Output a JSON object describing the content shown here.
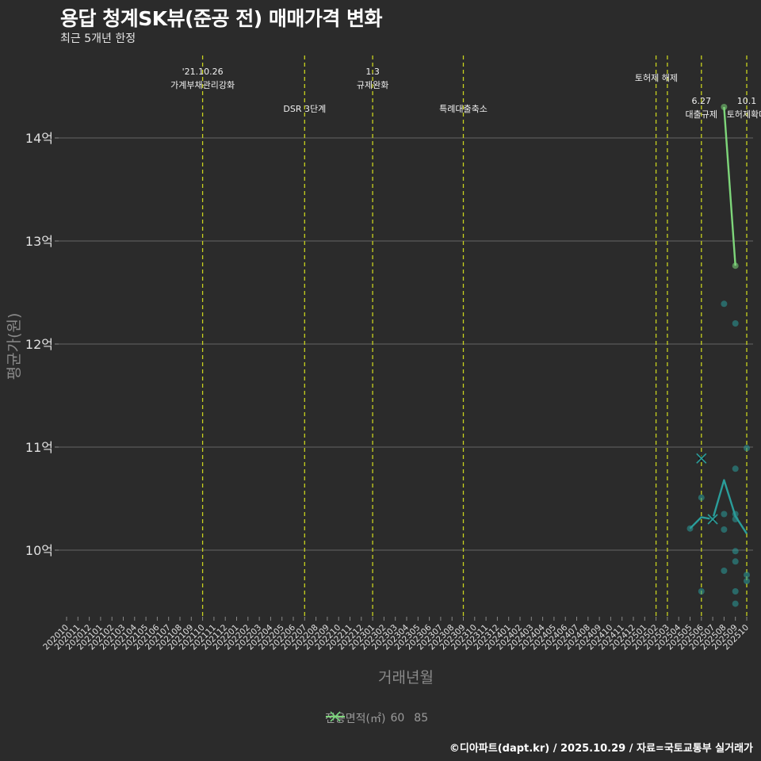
{
  "header": {
    "title": "용답 청계SK뷰(준공 전) 매매가격 변화",
    "subtitle": "최근 5개년 한정"
  },
  "caption": "©디아파트(dapt.kr) / 2025.10.29 / 자료=국토교통부 실거래가",
  "legend": {
    "title": "전용면적(㎡)",
    "items": [
      {
        "label": "60",
        "color": "#2a9d9a"
      },
      {
        "label": "85",
        "color": "#7ed67a"
      }
    ]
  },
  "colors": {
    "background": "#2b2b2b",
    "grid": "#5a5a5a",
    "event_line": "#c8d21e",
    "series_60": "#2a9d9a",
    "series_85": "#7ed67a"
  },
  "chart_data": {
    "type": "line",
    "title": "용답 청계SK뷰(준공 전) 매매가격 변화",
    "subtitle": "최근 5개년 한정",
    "xlabel": "거래년월",
    "ylabel": "평균가(원)",
    "ylim": [
      9.3,
      14.5
    ],
    "yticks": [
      {
        "value": 10,
        "label": "10억"
      },
      {
        "value": 11,
        "label": "11억"
      },
      {
        "value": 12,
        "label": "12억"
      },
      {
        "value": 13,
        "label": "13억"
      },
      {
        "value": 14,
        "label": "14억"
      }
    ],
    "categories": [
      "202010",
      "202011",
      "202012",
      "202101",
      "202102",
      "202103",
      "202104",
      "202105",
      "202106",
      "202107",
      "202108",
      "202109",
      "202110",
      "202111",
      "202112",
      "202201",
      "202202",
      "202203",
      "202204",
      "202205",
      "202206",
      "202207",
      "202208",
      "202209",
      "202210",
      "202211",
      "202212",
      "202301",
      "202302",
      "202303",
      "202304",
      "202305",
      "202306",
      "202307",
      "202308",
      "202309",
      "202310",
      "202311",
      "202312",
      "202401",
      "202402",
      "202403",
      "202404",
      "202405",
      "202406",
      "202407",
      "202408",
      "202409",
      "202410",
      "202411",
      "202412",
      "202501",
      "202502",
      "202503",
      "202504",
      "202505",
      "202506",
      "202507",
      "202508",
      "202509",
      "202510"
    ],
    "grid": true,
    "legend_position": "bottom",
    "series": [
      {
        "name": "60",
        "line": [
          {
            "x": "202505",
            "y": 10.21
          },
          {
            "x": "202506",
            "y": 10.32
          },
          {
            "x": "202507",
            "y": 10.3
          },
          {
            "x": "202508",
            "y": 10.68
          },
          {
            "x": "202509",
            "y": 10.33
          },
          {
            "x": "202510",
            "y": 10.16
          }
        ],
        "points": [
          {
            "x": "202505",
            "y": 10.21
          },
          {
            "x": "202506",
            "y": 10.51
          },
          {
            "x": "202506",
            "y": 9.6
          },
          {
            "x": "202508",
            "y": 12.39
          },
          {
            "x": "202508",
            "y": 10.35
          },
          {
            "x": "202508",
            "y": 10.2
          },
          {
            "x": "202508",
            "y": 9.8
          },
          {
            "x": "202509",
            "y": 12.2
          },
          {
            "x": "202509",
            "y": 10.79
          },
          {
            "x": "202509",
            "y": 10.35
          },
          {
            "x": "202509",
            "y": 10.3
          },
          {
            "x": "202509",
            "y": 9.99
          },
          {
            "x": "202509",
            "y": 9.89
          },
          {
            "x": "202509",
            "y": 9.6
          },
          {
            "x": "202509",
            "y": 9.48
          },
          {
            "x": "202510",
            "y": 10.99
          },
          {
            "x": "202510",
            "y": 9.76
          },
          {
            "x": "202510",
            "y": 9.7
          }
        ],
        "cancelled": [
          {
            "x": "202506",
            "y": 10.89
          },
          {
            "x": "202507",
            "y": 10.3
          }
        ]
      },
      {
        "name": "85",
        "line": [
          {
            "x": "202508",
            "y": 14.3
          },
          {
            "x": "202509",
            "y": 12.76
          }
        ],
        "points": [
          {
            "x": "202508",
            "y": 14.3
          },
          {
            "x": "202509",
            "y": 12.76
          }
        ],
        "cancelled": []
      }
    ],
    "annotations": [
      {
        "x": "202110",
        "lines": [
          "'21.10.26",
          "가계부채관리강화"
        ],
        "row": 0
      },
      {
        "x": "202207",
        "lines": [
          "DSR 3단계"
        ],
        "row": 2
      },
      {
        "x": "202301",
        "lines": [
          "1.3",
          "규제완화"
        ],
        "row": 0
      },
      {
        "x": "202309",
        "lines": [
          "특례대출축소"
        ],
        "row": 2
      },
      {
        "x": "202502",
        "lines": [],
        "row": 0
      },
      {
        "x": "202503",
        "lines": [
          "토허제 해제"
        ],
        "row": 1,
        "offset": -14
      },
      {
        "x": "202506",
        "lines": [
          "6.27",
          "대출규제"
        ],
        "row": 3
      },
      {
        "x": "202510",
        "lines": [
          "10.1",
          "토허제확대"
        ],
        "row": 3
      }
    ]
  }
}
